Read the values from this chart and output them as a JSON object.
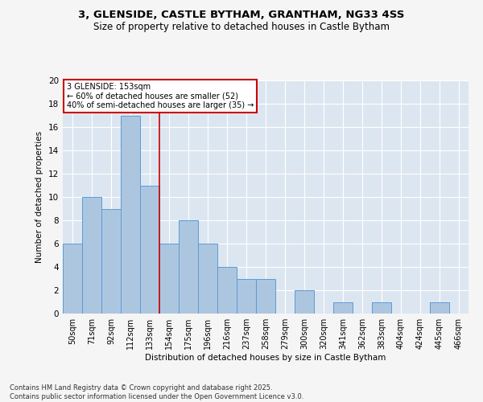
{
  "title_line1": "3, GLENSIDE, CASTLE BYTHAM, GRANTHAM, NG33 4SS",
  "title_line2": "Size of property relative to detached houses in Castle Bytham",
  "xlabel": "Distribution of detached houses by size in Castle Bytham",
  "ylabel": "Number of detached properties",
  "categories": [
    "50sqm",
    "71sqm",
    "92sqm",
    "112sqm",
    "133sqm",
    "154sqm",
    "175sqm",
    "196sqm",
    "216sqm",
    "237sqm",
    "258sqm",
    "279sqm",
    "300sqm",
    "320sqm",
    "341sqm",
    "362sqm",
    "383sqm",
    "404sqm",
    "424sqm",
    "445sqm",
    "466sqm"
  ],
  "values": [
    6,
    10,
    9,
    17,
    11,
    6,
    8,
    6,
    4,
    3,
    3,
    0,
    2,
    0,
    1,
    0,
    1,
    0,
    0,
    1,
    0
  ],
  "bar_color": "#adc6e0",
  "bar_edge_color": "#5b9bd5",
  "background_color": "#dce6f1",
  "grid_color": "#ffffff",
  "vline_x": 4.5,
  "vline_color": "#cc0000",
  "annotation_text": "3 GLENSIDE: 153sqm\n← 60% of detached houses are smaller (52)\n40% of semi-detached houses are larger (35) →",
  "annotation_box_color": "#ffffff",
  "annotation_box_edge_color": "#cc0000",
  "ylim": [
    0,
    20
  ],
  "yticks": [
    0,
    2,
    4,
    6,
    8,
    10,
    12,
    14,
    16,
    18,
    20
  ],
  "footer_line1": "Contains HM Land Registry data © Crown copyright and database right 2025.",
  "footer_line2": "Contains public sector information licensed under the Open Government Licence v3.0."
}
